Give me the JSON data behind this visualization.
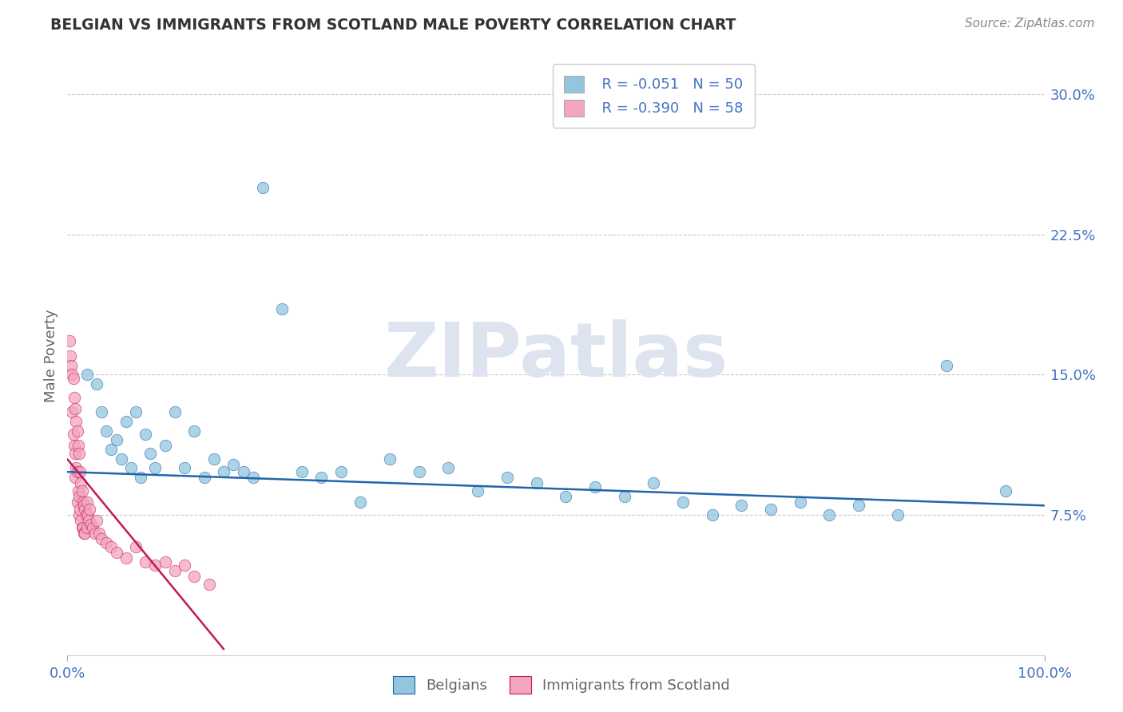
{
  "title": "BELGIAN VS IMMIGRANTS FROM SCOTLAND MALE POVERTY CORRELATION CHART",
  "source": "Source: ZipAtlas.com",
  "ylabel": "Male Poverty",
  "xlim": [
    0,
    1.0
  ],
  "ylim": [
    0.0,
    0.32
  ],
  "xtick_positions": [
    0.0,
    1.0
  ],
  "xtick_labels": [
    "0.0%",
    "100.0%"
  ],
  "ytick_vals": [
    0.075,
    0.15,
    0.225,
    0.3
  ],
  "ytick_labels": [
    "7.5%",
    "15.0%",
    "22.5%",
    "30.0%"
  ],
  "watermark": "ZIPatlas",
  "legend_r1": "R = -0.051",
  "legend_n1": "N = 50",
  "legend_r2": "R = -0.390",
  "legend_n2": "N = 58",
  "legend_label1": "Belgians",
  "legend_label2": "Immigrants from Scotland",
  "color_blue": "#92c5de",
  "color_pink": "#f4a6be",
  "color_blue_line": "#2166ac",
  "color_pink_line": "#c2185b",
  "blue_scatter_x": [
    0.02,
    0.03,
    0.035,
    0.04,
    0.045,
    0.05,
    0.055,
    0.06,
    0.065,
    0.07,
    0.075,
    0.08,
    0.085,
    0.09,
    0.1,
    0.11,
    0.12,
    0.13,
    0.14,
    0.15,
    0.16,
    0.17,
    0.18,
    0.19,
    0.2,
    0.22,
    0.24,
    0.26,
    0.28,
    0.3,
    0.33,
    0.36,
    0.39,
    0.42,
    0.45,
    0.48,
    0.51,
    0.54,
    0.57,
    0.6,
    0.63,
    0.66,
    0.69,
    0.72,
    0.75,
    0.78,
    0.81,
    0.85,
    0.9,
    0.96
  ],
  "blue_scatter_y": [
    0.15,
    0.145,
    0.13,
    0.12,
    0.11,
    0.115,
    0.105,
    0.125,
    0.1,
    0.13,
    0.095,
    0.118,
    0.108,
    0.1,
    0.112,
    0.13,
    0.1,
    0.12,
    0.095,
    0.105,
    0.098,
    0.102,
    0.098,
    0.095,
    0.25,
    0.185,
    0.098,
    0.095,
    0.098,
    0.082,
    0.105,
    0.098,
    0.1,
    0.088,
    0.095,
    0.092,
    0.085,
    0.09,
    0.085,
    0.092,
    0.082,
    0.075,
    0.08,
    0.078,
    0.082,
    0.075,
    0.08,
    0.075,
    0.155,
    0.088
  ],
  "pink_scatter_x": [
    0.002,
    0.003,
    0.004,
    0.005,
    0.005,
    0.006,
    0.006,
    0.007,
    0.007,
    0.008,
    0.008,
    0.008,
    0.009,
    0.009,
    0.01,
    0.01,
    0.01,
    0.011,
    0.011,
    0.012,
    0.012,
    0.012,
    0.013,
    0.013,
    0.014,
    0.014,
    0.015,
    0.015,
    0.016,
    0.016,
    0.017,
    0.017,
    0.018,
    0.018,
    0.019,
    0.02,
    0.02,
    0.021,
    0.022,
    0.023,
    0.024,
    0.026,
    0.028,
    0.03,
    0.032,
    0.035,
    0.04,
    0.045,
    0.05,
    0.06,
    0.07,
    0.08,
    0.09,
    0.1,
    0.11,
    0.12,
    0.13,
    0.145
  ],
  "pink_scatter_y": [
    0.168,
    0.16,
    0.155,
    0.15,
    0.13,
    0.148,
    0.118,
    0.138,
    0.112,
    0.132,
    0.108,
    0.095,
    0.125,
    0.1,
    0.12,
    0.098,
    0.082,
    0.112,
    0.088,
    0.108,
    0.085,
    0.075,
    0.098,
    0.078,
    0.092,
    0.072,
    0.088,
    0.068,
    0.082,
    0.068,
    0.08,
    0.065,
    0.078,
    0.065,
    0.075,
    0.082,
    0.068,
    0.075,
    0.072,
    0.078,
    0.07,
    0.068,
    0.065,
    0.072,
    0.065,
    0.062,
    0.06,
    0.058,
    0.055,
    0.052,
    0.058,
    0.05,
    0.048,
    0.05,
    0.045,
    0.048,
    0.042,
    0.038
  ],
  "background_color": "#ffffff",
  "grid_color": "#bbbbbb",
  "title_color": "#333333",
  "axis_label_color": "#666666",
  "tick_label_color_right": "#4472c4",
  "tick_label_color_bottom": "#4472c4",
  "watermark_color": "#dde4f0"
}
